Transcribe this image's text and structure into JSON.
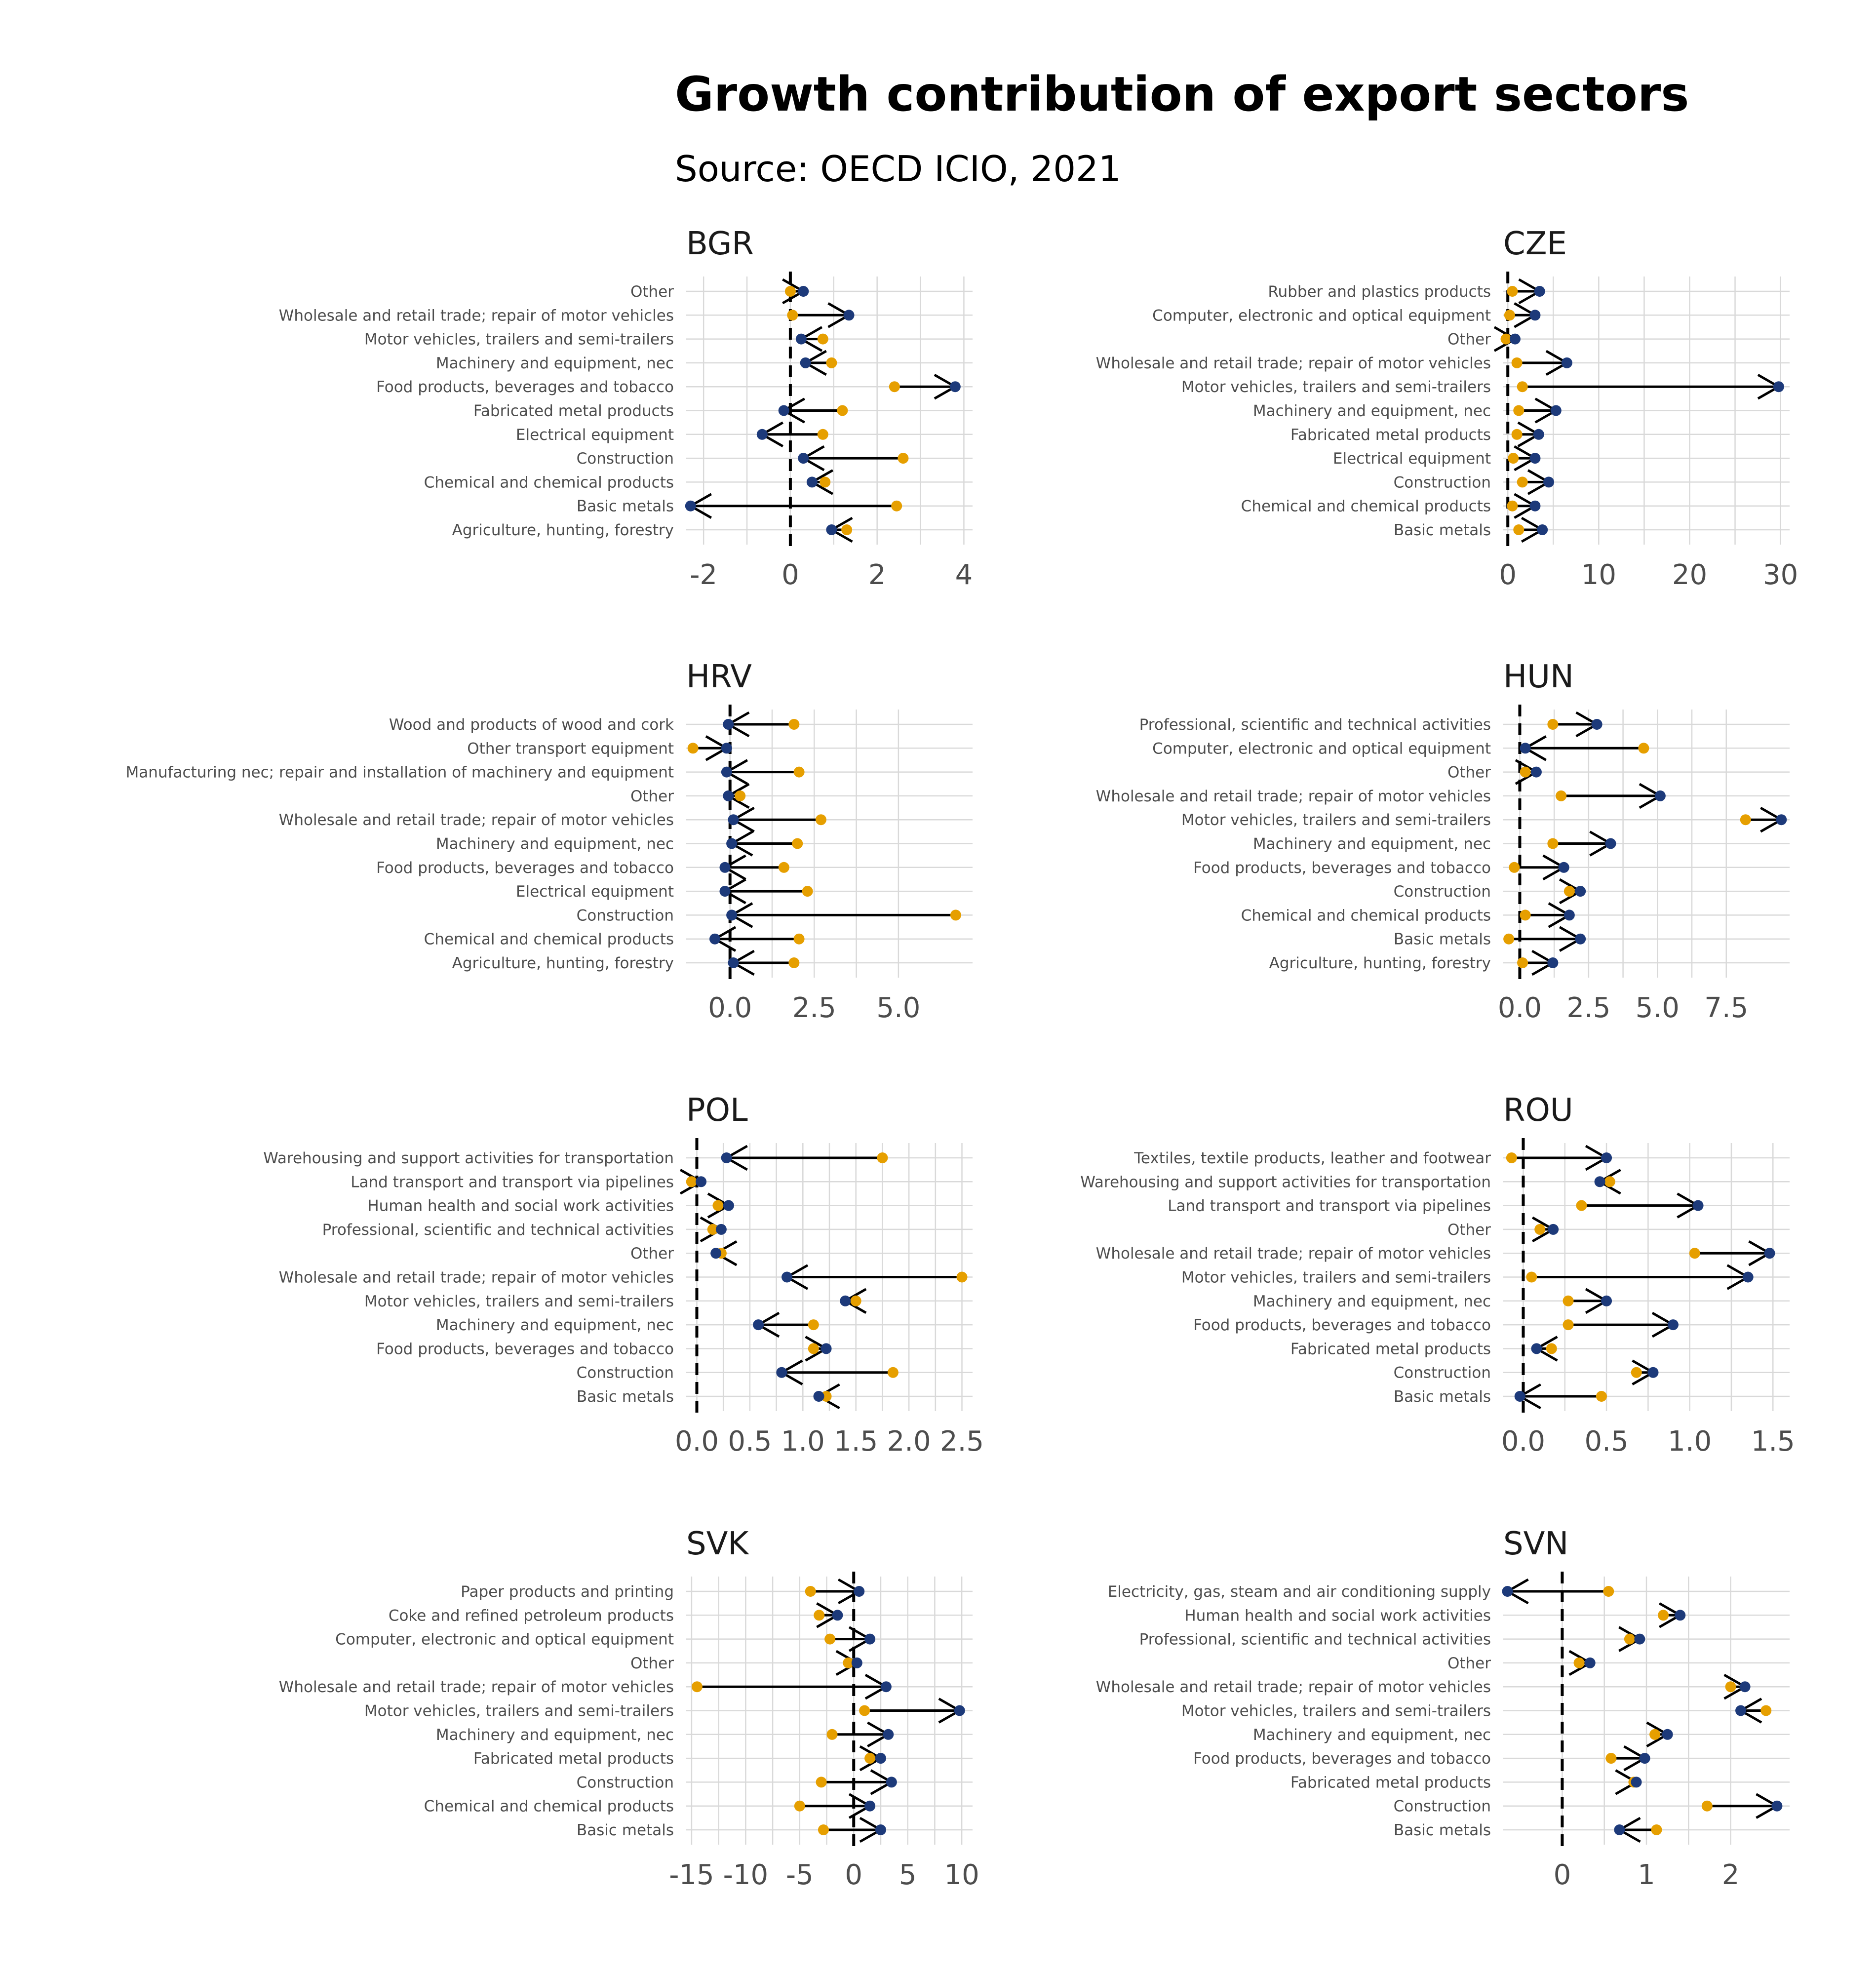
{
  "title": "Growth contribution of export sectors",
  "subtitle": "Source: OECD ICIO, 2021",
  "colors": {
    "start": "#E69F00",
    "end": "#1D3A7A",
    "arrow": "#000000",
    "grid": "#d9d9d9"
  },
  "chart_data": [
    {
      "type": "dumbbell-arrow",
      "panel": "BGR",
      "xlim": [
        -2.4,
        4.2
      ],
      "ticks": [
        -2,
        0,
        2,
        4
      ],
      "tick_labels": [
        "-2",
        "0",
        "2",
        "4"
      ],
      "rows": [
        {
          "label": "Other",
          "start": 0.0,
          "end": 0.3
        },
        {
          "label": "Wholesale and retail trade; repair of motor vehicles",
          "start": 0.05,
          "end": 1.35
        },
        {
          "label": "Motor vehicles, trailers and semi-trailers",
          "start": 0.75,
          "end": 0.25
        },
        {
          "label": "Machinery and equipment, nec",
          "start": 0.95,
          "end": 0.35
        },
        {
          "label": "Food products, beverages and tobacco",
          "start": 2.4,
          "end": 3.8
        },
        {
          "label": "Fabricated metal products",
          "start": 1.2,
          "end": -0.15
        },
        {
          "label": "Electrical equipment",
          "start": 0.75,
          "end": -0.65
        },
        {
          "label": "Construction",
          "start": 2.6,
          "end": 0.3
        },
        {
          "label": "Chemical and chemical products",
          "start": 0.8,
          "end": 0.5
        },
        {
          "label": "Basic metals",
          "start": 2.45,
          "end": -2.3
        },
        {
          "label": "Agriculture, hunting, forestry",
          "start": 1.3,
          "end": 0.95
        }
      ]
    },
    {
      "type": "dumbbell-arrow",
      "panel": "CZE",
      "xlim": [
        -0.5,
        31
      ],
      "ticks": [
        0,
        10,
        20,
        30
      ],
      "tick_labels": [
        "0",
        "10",
        "20",
        "30"
      ],
      "rows": [
        {
          "label": "Rubber and plastics products",
          "start": 0.5,
          "end": 3.5
        },
        {
          "label": "Computer, electronic and optical equipment",
          "start": 0.2,
          "end": 3.0
        },
        {
          "label": "Other",
          "start": -0.2,
          "end": 0.8
        },
        {
          "label": "Wholesale and retail trade; repair of motor vehicles",
          "start": 1.0,
          "end": 6.5
        },
        {
          "label": "Motor vehicles, trailers and semi-trailers",
          "start": 1.6,
          "end": 29.8
        },
        {
          "label": "Machinery and equipment, nec",
          "start": 1.2,
          "end": 5.3
        },
        {
          "label": "Fabricated metal products",
          "start": 1.0,
          "end": 3.4
        },
        {
          "label": "Electrical equipment",
          "start": 0.6,
          "end": 3.0
        },
        {
          "label": "Construction",
          "start": 1.6,
          "end": 4.5
        },
        {
          "label": "Chemical and chemical products",
          "start": 0.5,
          "end": 3.0
        },
        {
          "label": "Basic metals",
          "start": 1.2,
          "end": 3.8
        }
      ]
    },
    {
      "type": "dumbbell-arrow",
      "panel": "HRV",
      "xlim": [
        -1.3,
        7.2
      ],
      "ticks": [
        0.0,
        2.5,
        5.0
      ],
      "tick_labels": [
        "0.0",
        "2.5",
        "5.0"
      ],
      "rows": [
        {
          "label": "Wood and products of wood and cork",
          "start": 1.9,
          "end": -0.05
        },
        {
          "label": "Other transport equipment",
          "start": -1.1,
          "end": -0.1
        },
        {
          "label": "Manufacturing nec; repair and installation of machinery and equipment",
          "start": 2.05,
          "end": -0.1
        },
        {
          "label": "Other",
          "start": 0.3,
          "end": -0.05
        },
        {
          "label": "Wholesale and retail trade; repair of motor vehicles",
          "start": 2.7,
          "end": 0.1
        },
        {
          "label": "Machinery and equipment, nec",
          "start": 2.0,
          "end": 0.05
        },
        {
          "label": "Food products, beverages and tobacco",
          "start": 1.6,
          "end": -0.15
        },
        {
          "label": "Electrical equipment",
          "start": 2.3,
          "end": -0.15
        },
        {
          "label": "Construction",
          "start": 6.7,
          "end": 0.05
        },
        {
          "label": "Chemical and chemical products",
          "start": 2.05,
          "end": -0.45
        },
        {
          "label": "Agriculture, hunting, forestry",
          "start": 1.9,
          "end": 0.1
        }
      ]
    },
    {
      "type": "dumbbell-arrow",
      "panel": "HUN",
      "xlim": [
        -0.6,
        9.8
      ],
      "ticks": [
        0.0,
        2.5,
        5.0,
        7.5
      ],
      "tick_labels": [
        "0.0",
        "2.5",
        "5.0",
        "7.5"
      ],
      "rows": [
        {
          "label": "Professional, scientific and technical activities",
          "start": 1.2,
          "end": 2.8
        },
        {
          "label": "Computer, electronic and optical equipment",
          "start": 4.5,
          "end": 0.2
        },
        {
          "label": "Other",
          "start": 0.2,
          "end": 0.6
        },
        {
          "label": "Wholesale and retail trade; repair of motor vehicles",
          "start": 1.5,
          "end": 5.1
        },
        {
          "label": "Motor vehicles, trailers and semi-trailers",
          "start": 8.2,
          "end": 9.5
        },
        {
          "label": "Machinery and equipment, nec",
          "start": 1.2,
          "end": 3.3
        },
        {
          "label": "Food products, beverages and tobacco",
          "start": -0.2,
          "end": 1.6
        },
        {
          "label": "Construction",
          "start": 1.8,
          "end": 2.2
        },
        {
          "label": "Chemical and chemical products",
          "start": 0.2,
          "end": 1.8
        },
        {
          "label": "Basic metals",
          "start": -0.4,
          "end": 2.2
        },
        {
          "label": "Agriculture, hunting, forestry",
          "start": 0.1,
          "end": 1.2
        }
      ]
    },
    {
      "type": "dumbbell-arrow",
      "panel": "POL",
      "xlim": [
        -0.1,
        2.6
      ],
      "ticks": [
        0.0,
        0.5,
        1.0,
        1.5,
        2.0,
        2.5
      ],
      "tick_labels": [
        "0.0",
        "0.5",
        "1.0",
        "1.5",
        "2.0",
        "2.5"
      ],
      "rows": [
        {
          "label": "Warehousing and support activities for transportation",
          "start": 1.75,
          "end": 0.28
        },
        {
          "label": "Land transport and transport via pipelines",
          "start": -0.05,
          "end": 0.04
        },
        {
          "label": "Human health and social work activities",
          "start": 0.2,
          "end": 0.3
        },
        {
          "label": "Professional, scientific and technical activities",
          "start": 0.15,
          "end": 0.23
        },
        {
          "label": "Other",
          "start": 0.23,
          "end": 0.18
        },
        {
          "label": "Wholesale and retail trade; repair of motor vehicles",
          "start": 2.5,
          "end": 0.85
        },
        {
          "label": "Motor vehicles, trailers and semi-trailers",
          "start": 1.5,
          "end": 1.4
        },
        {
          "label": "Machinery and equipment, nec",
          "start": 1.1,
          "end": 0.58
        },
        {
          "label": "Food products, beverages and tobacco",
          "start": 1.1,
          "end": 1.22
        },
        {
          "label": "Construction",
          "start": 1.85,
          "end": 0.8
        },
        {
          "label": "Basic metals",
          "start": 1.22,
          "end": 1.15
        }
      ]
    },
    {
      "type": "dumbbell-arrow",
      "panel": "ROU",
      "xlim": [
        -0.12,
        1.6
      ],
      "ticks": [
        0.0,
        0.5,
        1.0,
        1.5
      ],
      "tick_labels": [
        "0.0",
        "0.5",
        "1.0",
        "1.5"
      ],
      "rows": [
        {
          "label": "Textiles, textile products, leather and footwear",
          "start": -0.07,
          "end": 0.5
        },
        {
          "label": "Warehousing and support activities for transportation",
          "start": 0.52,
          "end": 0.46
        },
        {
          "label": "Land transport and transport via pipelines",
          "start": 0.35,
          "end": 1.05
        },
        {
          "label": "Other",
          "start": 0.1,
          "end": 0.18
        },
        {
          "label": "Wholesale and retail trade; repair of motor vehicles",
          "start": 1.03,
          "end": 1.48
        },
        {
          "label": "Motor vehicles, trailers and semi-trailers",
          "start": 0.05,
          "end": 1.35
        },
        {
          "label": "Machinery and equipment, nec",
          "start": 0.27,
          "end": 0.5
        },
        {
          "label": "Food products, beverages and tobacco",
          "start": 0.27,
          "end": 0.9
        },
        {
          "label": "Fabricated metal products",
          "start": 0.17,
          "end": 0.08
        },
        {
          "label": "Construction",
          "start": 0.68,
          "end": 0.78
        },
        {
          "label": "Basic metals",
          "start": 0.47,
          "end": -0.02
        }
      ]
    },
    {
      "type": "dumbbell-arrow",
      "panel": "SVK",
      "xlim": [
        -15.5,
        11
      ],
      "ticks": [
        -15,
        -10,
        -5,
        0,
        5,
        10
      ],
      "tick_labels": [
        "-15",
        "-10",
        "-5",
        "0",
        "5",
        "10"
      ],
      "rows": [
        {
          "label": "Paper products and printing",
          "start": -4.0,
          "end": 0.5
        },
        {
          "label": "Coke and refined petroleum products",
          "start": -3.2,
          "end": -1.5
        },
        {
          "label": "Computer, electronic and optical equipment",
          "start": -2.2,
          "end": 1.5
        },
        {
          "label": "Other",
          "start": -0.5,
          "end": 0.3
        },
        {
          "label": "Wholesale and retail trade; repair of motor vehicles",
          "start": -14.5,
          "end": 3.0
        },
        {
          "label": "Motor vehicles, trailers and semi-trailers",
          "start": 1.0,
          "end": 9.8
        },
        {
          "label": "Machinery and equipment, nec",
          "start": -2.0,
          "end": 3.2
        },
        {
          "label": "Fabricated metal products",
          "start": 1.5,
          "end": 2.5
        },
        {
          "label": "Construction",
          "start": -3.0,
          "end": 3.5
        },
        {
          "label": "Chemical and chemical products",
          "start": -5.0,
          "end": 1.5
        },
        {
          "label": "Basic metals",
          "start": -2.8,
          "end": 2.5
        }
      ]
    },
    {
      "type": "dumbbell-arrow",
      "panel": "SVN",
      "xlim": [
        -0.7,
        2.7
      ],
      "ticks": [
        0,
        1,
        2
      ],
      "tick_labels": [
        "0",
        "1",
        "2"
      ],
      "rows": [
        {
          "label": "Electricity, gas, steam and air conditioning supply",
          "start": 0.55,
          "end": -0.65
        },
        {
          "label": "Human health and social work activities",
          "start": 1.2,
          "end": 1.4
        },
        {
          "label": "Professional, scientific and technical activities",
          "start": 0.8,
          "end": 0.92
        },
        {
          "label": "Other",
          "start": 0.2,
          "end": 0.33
        },
        {
          "label": "Wholesale and retail trade; repair of motor vehicles",
          "start": 2.0,
          "end": 2.17
        },
        {
          "label": "Motor vehicles, trailers and semi-trailers",
          "start": 2.42,
          "end": 2.12
        },
        {
          "label": "Machinery and equipment, nec",
          "start": 1.1,
          "end": 1.25
        },
        {
          "label": "Food products, beverages and tobacco",
          "start": 0.58,
          "end": 0.98
        },
        {
          "label": "Fabricated metal products",
          "start": 0.85,
          "end": 0.88
        },
        {
          "label": "Construction",
          "start": 1.72,
          "end": 2.55
        },
        {
          "label": "Basic metals",
          "start": 1.12,
          "end": 0.68
        }
      ]
    }
  ]
}
